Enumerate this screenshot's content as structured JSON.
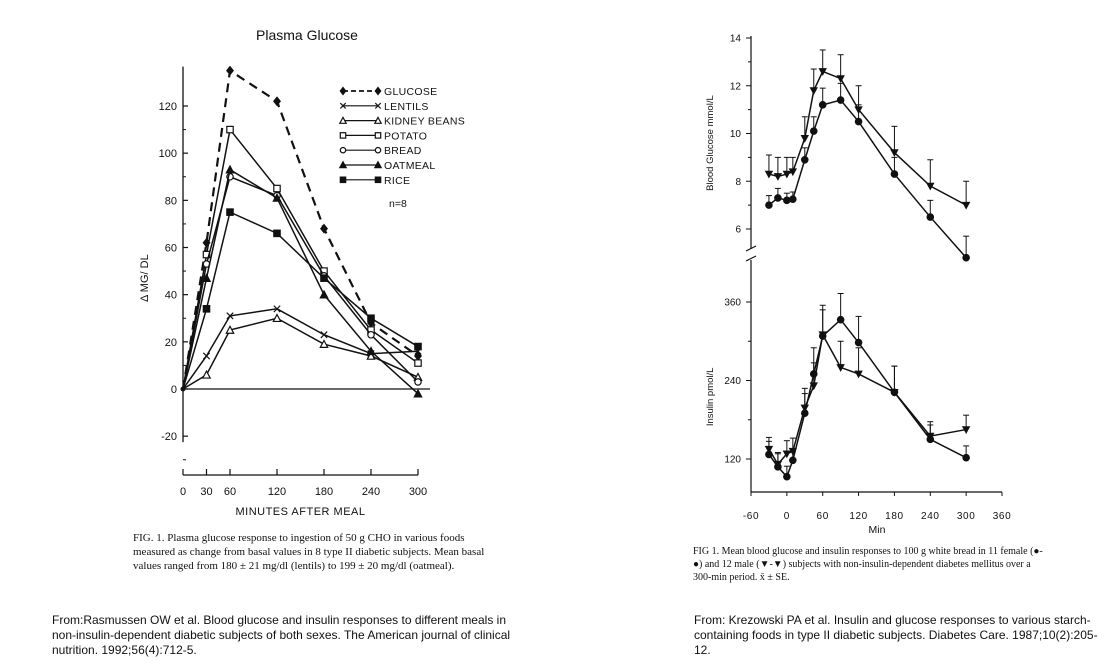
{
  "chart_data": [
    {
      "type": "line",
      "title": "Plasma Glucose",
      "xlabel": "MINUTES AFTER MEAL",
      "ylabel": "Δ MG/ DL",
      "xlim": [
        0,
        300
      ],
      "ylim": [
        -20,
        130
      ],
      "x_ticks": [
        0,
        30,
        60,
        120,
        180,
        240,
        300
      ],
      "x_tick_labels": [
        "0",
        "30",
        "60",
        "120",
        "180",
        "240",
        "300"
      ],
      "y_ticks": [
        -20,
        0,
        20,
        40,
        60,
        80,
        100,
        120
      ],
      "y_tick_labels": [
        "-20",
        "0",
        "20",
        "40",
        "60",
        "80",
        "100",
        "120"
      ],
      "legend_position": "top-right",
      "annotation": "n=8",
      "grid": false,
      "series": [
        {
          "name": "GLUCOSE",
          "marker": "filled-diamond",
          "dash": true,
          "x": [
            0,
            30,
            60,
            120,
            180,
            240,
            300
          ],
          "y": [
            0,
            62,
            135,
            122,
            68,
            28,
            14
          ]
        },
        {
          "name": "LENTILS",
          "marker": "x",
          "dash": false,
          "x": [
            0,
            30,
            60,
            120,
            180,
            240,
            300
          ],
          "y": [
            0,
            14,
            31,
            34,
            23,
            15,
            16
          ]
        },
        {
          "name": "KIDNEY BEANS",
          "marker": "open-triangle",
          "dash": false,
          "x": [
            0,
            30,
            60,
            120,
            180,
            240,
            300
          ],
          "y": [
            0,
            6,
            25,
            30,
            19,
            14,
            5
          ]
        },
        {
          "name": "POTATO",
          "marker": "open-square",
          "dash": false,
          "x": [
            0,
            30,
            60,
            120,
            180,
            240,
            300
          ],
          "y": [
            0,
            57,
            110,
            85,
            50,
            25,
            11
          ]
        },
        {
          "name": "BREAD",
          "marker": "open-circle",
          "dash": false,
          "x": [
            0,
            30,
            60,
            120,
            180,
            240,
            300
          ],
          "y": [
            0,
            53,
            90,
            82,
            48,
            23,
            3
          ]
        },
        {
          "name": "OATMEAL",
          "marker": "filled-triangle",
          "dash": false,
          "x": [
            0,
            30,
            60,
            120,
            180,
            240,
            300
          ],
          "y": [
            0,
            47,
            93,
            81,
            40,
            16,
            -2
          ]
        },
        {
          "name": "RICE",
          "marker": "filled-square",
          "dash": false,
          "x": [
            0,
            30,
            60,
            120,
            180,
            240,
            300
          ],
          "y": [
            0,
            34,
            75,
            66,
            47,
            30,
            18
          ]
        }
      ]
    },
    {
      "type": "line",
      "title": "",
      "xlabel": "Min",
      "ylabel": "Blood Glucose mmol/L",
      "xlim": [
        -60,
        360
      ],
      "ylim": [
        5,
        14
      ],
      "x_ticks": [
        -60,
        0,
        60,
        120,
        180,
        240,
        300,
        360
      ],
      "y_ticks": [
        6,
        8,
        10,
        12,
        14
      ],
      "y_tick_labels": [
        "6",
        "8",
        "10",
        "12",
        "14"
      ],
      "grid": false,
      "series": [
        {
          "name": "female",
          "marker": "filled-circle",
          "x": [
            -30,
            -15,
            0,
            10,
            30,
            45,
            60,
            90,
            120,
            180,
            240,
            300
          ],
          "y": [
            7.0,
            7.3,
            7.2,
            7.25,
            8.9,
            10.1,
            11.2,
            11.4,
            10.5,
            8.3,
            6.5,
            4.8
          ],
          "err": [
            0.4,
            0.4,
            0.3,
            0.3,
            0.5,
            0.6,
            0.7,
            0.7,
            0.7,
            0.7,
            0.7,
            0.9
          ]
        },
        {
          "name": "male",
          "marker": "filled-down-triangle",
          "x": [
            -30,
            -15,
            0,
            10,
            30,
            45,
            60,
            90,
            120,
            180,
            240,
            300
          ],
          "y": [
            8.3,
            8.2,
            8.3,
            8.4,
            9.8,
            11.8,
            12.6,
            12.3,
            11.0,
            9.2,
            7.8,
            7.0
          ],
          "err": [
            0.8,
            0.8,
            0.7,
            0.6,
            0.9,
            0.9,
            0.9,
            1.0,
            1.0,
            1.1,
            1.1,
            1.0
          ]
        }
      ]
    },
    {
      "type": "line",
      "title": "",
      "xlabel": "Min",
      "ylabel": "Insulin pmol/L",
      "x_tick_labels": [
        "-60",
        "0",
        "60",
        "120",
        "180",
        "240",
        "300",
        "360"
      ],
      "xlim": [
        -60,
        360
      ],
      "ylim": [
        90,
        390
      ],
      "x_ticks": [
        -60,
        0,
        60,
        120,
        180,
        240,
        300,
        360
      ],
      "y_ticks": [
        120,
        240,
        360
      ],
      "y_tick_labels": [
        "120",
        "240",
        "360"
      ],
      "grid": false,
      "series": [
        {
          "name": "female",
          "marker": "filled-circle",
          "x": [
            -30,
            -15,
            0,
            10,
            30,
            45,
            60,
            90,
            120,
            180,
            240,
            300
          ],
          "y": [
            127,
            108,
            93,
            118,
            190,
            250,
            308,
            333,
            298,
            222,
            150,
            122
          ],
          "err": [
            20,
            20,
            16,
            18,
            30,
            40,
            40,
            40,
            40,
            40,
            22,
            18
          ]
        },
        {
          "name": "male",
          "marker": "filled-down-triangle",
          "x": [
            -30,
            -15,
            0,
            10,
            30,
            45,
            60,
            90,
            120,
            180,
            240,
            300
          ],
          "y": [
            135,
            112,
            128,
            132,
            198,
            232,
            310,
            260,
            250,
            222,
            155,
            165
          ],
          "err": [
            18,
            18,
            20,
            20,
            30,
            35,
            45,
            40,
            40,
            40,
            22,
            22
          ]
        }
      ]
    }
  ],
  "captions": {
    "left_fig": "FIG. 1. Plasma glucose response to ingestion of 50 g CHO in various foods measured as change from basal values in 8 type II diabetic subjects. Mean basal values ranged from 180 ± 21 mg/dl (lentils) to 199 ± 20 mg/dl (oatmeal).",
    "right_fig": "FIG 1. Mean blood glucose and insulin responses to 100 g white bread in 11 female (●-●) and 12 male (▼-▼) subjects with non-insulin-dependent diabetes mellitus over a 300-min period. x̄ ± SE.",
    "left_source": "From:Rasmussen OW et al. Blood glucose and insulin responses to different meals in non-insulin-dependent diabetic subjects of both sexes. The American journal of clinical nutrition. 1992;56(4):712-5.",
    "right_source": "From: Krezowski PA et al. Insulin and glucose responses to various starch-containing foods in type II diabetic subjects. Diabetes Care. 1987;10(2):205-12."
  }
}
